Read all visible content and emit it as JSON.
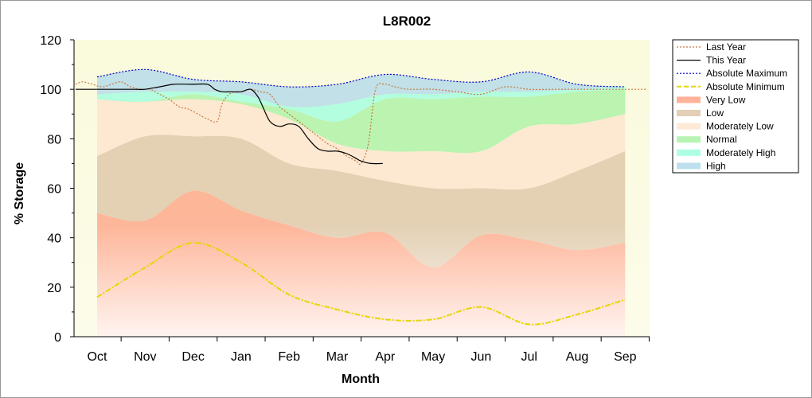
{
  "chart_data": {
    "type": "area",
    "title": "L8R002",
    "xlabel": "Month",
    "ylabel": "% Storage",
    "ylim": [
      0,
      120
    ],
    "y_ticks": [
      "0",
      "20",
      "40",
      "60",
      "80",
      "100",
      "120"
    ],
    "categories": [
      "Oct",
      "Nov",
      "Dec",
      "Jan",
      "Feb",
      "Mar",
      "Apr",
      "May",
      "Jun",
      "Jul",
      "Aug",
      "Sep"
    ],
    "legend_position": "right",
    "bands": [
      {
        "name": "Very Low",
        "color": "#ff9f80",
        "lower": [
          0,
          0,
          0,
          0,
          0,
          0,
          0,
          0,
          0,
          0,
          0,
          0
        ],
        "upper": [
          50,
          47,
          59,
          51,
          45,
          40,
          42,
          28,
          41,
          39,
          35,
          38
        ]
      },
      {
        "name": "Low",
        "color": "#dcc3a4",
        "lower": [
          50,
          47,
          59,
          51,
          45,
          40,
          42,
          28,
          41,
          39,
          35,
          38
        ],
        "upper": [
          73,
          81,
          81,
          80,
          70,
          67,
          63,
          60,
          60,
          60,
          67,
          75
        ]
      },
      {
        "name": "Moderately Low",
        "color": "#fde3cc",
        "lower": [
          73,
          81,
          81,
          80,
          70,
          67,
          63,
          60,
          60,
          60,
          67,
          75
        ],
        "upper": [
          96,
          95,
          96,
          94,
          88,
          78,
          75,
          75,
          75,
          85,
          86,
          90
        ]
      },
      {
        "name": "Normal",
        "color": "#a5f0a0",
        "lower": [
          96,
          95,
          96,
          94,
          88,
          78,
          75,
          75,
          75,
          85,
          86,
          90
        ],
        "upper": [
          96,
          95,
          98,
          95,
          92,
          87,
          96,
          96,
          97,
          97,
          99,
          100
        ]
      },
      {
        "name": "Moderately High",
        "color": "#99ffdd",
        "lower": [
          96,
          95,
          98,
          95,
          92,
          87,
          96,
          96,
          97,
          97,
          99,
          100
        ],
        "upper": [
          98,
          99,
          99,
          98,
          93,
          94,
          98,
          98,
          99,
          99,
          100,
          101
        ]
      },
      {
        "name": "High",
        "color": "#add7ea",
        "lower": [
          98,
          99,
          99,
          98,
          93,
          94,
          98,
          98,
          99,
          99,
          100,
          101
        ],
        "upper": [
          105,
          108,
          104,
          103,
          101,
          102,
          106,
          104,
          103,
          107,
          102,
          101
        ]
      }
    ],
    "series": [
      {
        "name": "Last Year",
        "color": "#c87840",
        "style": "dotted",
        "x": [
          -0.45,
          -0.3,
          -0.1,
          0.1,
          0.3,
          0.5,
          0.7,
          0.9,
          1.1,
          1.3,
          1.5,
          1.7,
          1.9,
          2.1,
          2.3,
          2.5,
          2.6,
          2.75,
          2.9,
          3.0,
          3.2,
          3.4,
          3.6,
          3.8,
          4.0,
          4.2,
          4.4,
          4.6,
          4.8,
          5.0,
          5.2,
          5.4,
          5.5,
          5.65,
          5.8,
          6.0,
          6.2,
          6.5,
          7.0,
          7.5,
          8.0,
          8.5,
          9.0,
          9.5,
          10.0,
          10.5,
          11.0,
          11.45
        ],
        "y": [
          102,
          103,
          102,
          101,
          102,
          103,
          101,
          100,
          100,
          98,
          96,
          93,
          92,
          90,
          88,
          87,
          94,
          98,
          99,
          99,
          100,
          99,
          98,
          93,
          90,
          87,
          84,
          81,
          78,
          76,
          73,
          71,
          70,
          78,
          100,
          102,
          101,
          100,
          100,
          99,
          98,
          101,
          100,
          100,
          100,
          100,
          100,
          100
        ]
      },
      {
        "name": "This Year",
        "color": "#000000",
        "style": "solid",
        "x": [
          -0.45,
          0,
          0.3,
          0.6,
          0.8,
          1.0,
          1.3,
          1.6,
          2.0,
          2.3,
          2.45,
          2.6,
          2.8,
          3.0,
          3.2,
          3.35,
          3.45,
          3.6,
          3.8,
          4.0,
          4.2,
          4.4,
          4.6,
          4.8,
          5.0,
          5.2,
          5.4,
          5.5,
          5.7,
          5.95
        ],
        "y": [
          100,
          100,
          100,
          100,
          100,
          100,
          101,
          102,
          102,
          102,
          100,
          99,
          99,
          99,
          100,
          97,
          93,
          87,
          85,
          86,
          85,
          80,
          76,
          75,
          75,
          74,
          72,
          71,
          70,
          70
        ]
      },
      {
        "name": "Absolute Maximum",
        "color": "#0000c8",
        "style": "dotted",
        "x": [
          0,
          1,
          2,
          3,
          4,
          5,
          6,
          7,
          8,
          9,
          10,
          11
        ],
        "y": [
          105,
          108,
          104,
          103,
          101,
          102,
          106,
          104,
          103,
          107,
          102,
          101
        ]
      },
      {
        "name": "Absolute Minimum",
        "color": "#e6d600",
        "style": "dashed",
        "x": [
          0,
          1,
          2,
          3,
          4,
          5,
          6,
          7,
          8,
          9,
          10,
          11
        ],
        "y": [
          16,
          28,
          38,
          30,
          17,
          11,
          7,
          7,
          12,
          5,
          9,
          15
        ]
      }
    ],
    "legend": [
      "Last Year",
      "This Year",
      "Absolute Maximum",
      "Absolute Minimum",
      "Very Low",
      "Low",
      "Moderately Low",
      "Normal",
      "Moderately High",
      "High"
    ]
  }
}
